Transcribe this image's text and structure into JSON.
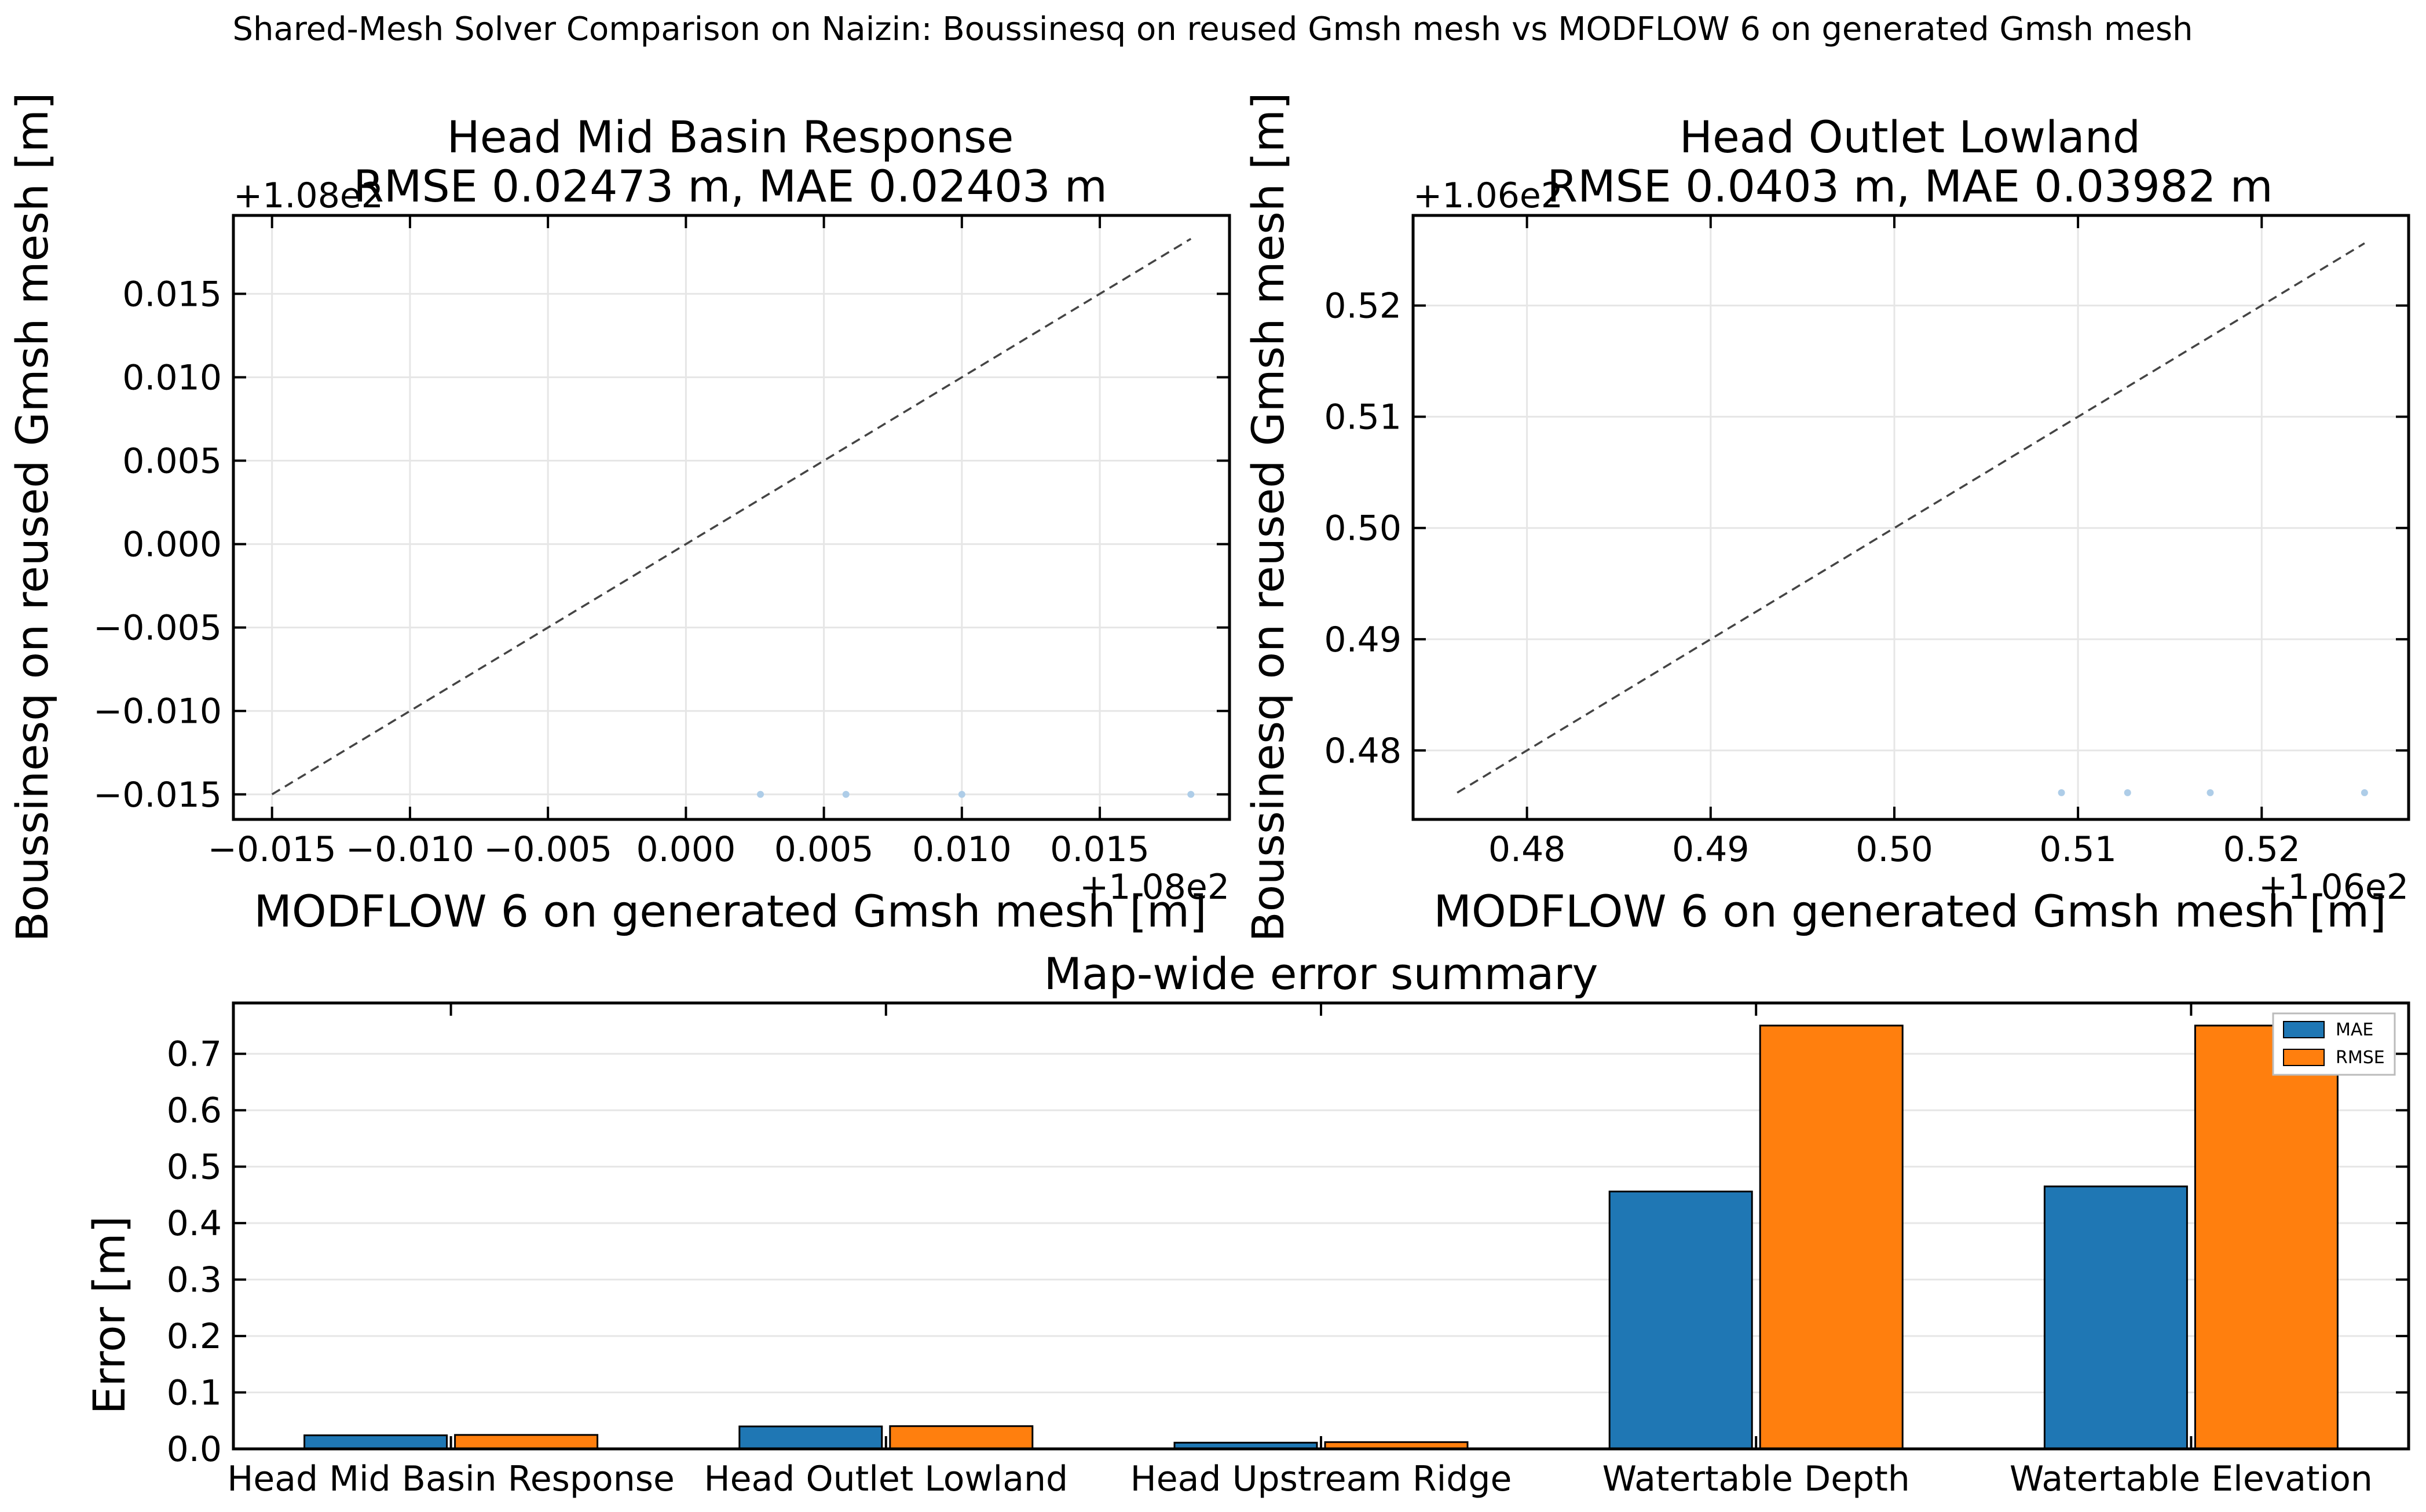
{
  "figure": {
    "suptitle": "Shared-Mesh Solver Comparison on Naizin: Boussinesq on reused Gmsh mesh vs MODFLOW 6 on generated Gmsh mesh"
  },
  "chart_data": [
    {
      "type": "scatter",
      "title": "Head Mid Basin Response",
      "subtitle": "RMSE 0.02473 m, MAE 0.02403 m",
      "xlabel": "MODFLOW 6 on generated Gmsh mesh [m]",
      "ylabel": "Boussinesq on reused Gmsh mesh [m]",
      "x_offset_label": "+1.08e2",
      "y_offset_label": "+1.08e2",
      "xlim": [
        107.9836,
        108.0197
      ],
      "ylim": [
        107.9835,
        108.0197
      ],
      "xticks": [
        -0.015,
        -0.01,
        -0.005,
        0.0,
        0.005,
        0.01,
        0.015
      ],
      "xtick_labels": [
        "−0.015",
        "−0.010",
        "−0.005",
        "0.000",
        "0.005",
        "0.010",
        "0.015"
      ],
      "yticks": [
        -0.015,
        -0.01,
        -0.005,
        0.0,
        0.005,
        0.01,
        0.015
      ],
      "ytick_labels": [
        "−0.015",
        "−0.010",
        "−0.005",
        "0.000",
        "0.005",
        "0.010",
        "0.015"
      ],
      "tick_offset": 108,
      "reference_line": {
        "from": 107.985,
        "to": 108.0183
      },
      "grid": true,
      "point_color": "#aecde8",
      "points": [
        {
          "x": 108.0027,
          "y": 107.985
        },
        {
          "x": 108.0058,
          "y": 107.985
        },
        {
          "x": 108.01,
          "y": 107.985
        },
        {
          "x": 108.0183,
          "y": 107.985
        }
      ]
    },
    {
      "type": "scatter",
      "title": "Head Outlet Lowland",
      "subtitle": "RMSE 0.0403 m, MAE 0.03982 m",
      "xlabel": "MODFLOW 6 on generated Gmsh mesh [m]",
      "ylabel": "Boussinesq on reused Gmsh mesh [m]",
      "x_offset_label": "+1.06e2",
      "y_offset_label": "+1.06e2",
      "xlim": [
        106.4738,
        106.528
      ],
      "ylim": [
        106.4738,
        106.5281
      ],
      "xticks": [
        0.48,
        0.49,
        0.5,
        0.51,
        0.52
      ],
      "xtick_labels": [
        "0.48",
        "0.49",
        "0.50",
        "0.51",
        "0.52"
      ],
      "yticks": [
        0.48,
        0.49,
        0.5,
        0.51,
        0.52
      ],
      "ytick_labels": [
        "0.48",
        "0.49",
        "0.50",
        "0.51",
        "0.52"
      ],
      "tick_offset": 106,
      "reference_line": {
        "from": 106.4762,
        "to": 106.5256
      },
      "grid": true,
      "point_color": "#aecde8",
      "points": [
        {
          "x": 106.5091,
          "y": 106.4762
        },
        {
          "x": 106.5127,
          "y": 106.4762
        },
        {
          "x": 106.5172,
          "y": 106.4762
        },
        {
          "x": 106.5256,
          "y": 106.4762
        }
      ]
    },
    {
      "type": "bar",
      "title": "Map-wide error summary",
      "xlabel": "",
      "ylabel": "Error [m]",
      "ylim": [
        0,
        0.79
      ],
      "yticks": [
        0,
        0.1,
        0.2,
        0.3,
        0.4,
        0.5,
        0.6,
        0.7
      ],
      "ytick_labels": [
        "0.0",
        "0.1",
        "0.2",
        "0.3",
        "0.4",
        "0.5",
        "0.6",
        "0.7"
      ],
      "grid": true,
      "legend_position": "top-right",
      "categories": [
        "Head Mid Basin Response",
        "Head Outlet Lowland",
        "Head Upstream Ridge",
        "Watertable Depth",
        "Watertable Elevation"
      ],
      "series": [
        {
          "name": "MAE",
          "color": "#1f77b4",
          "values": [
            0.02403,
            0.03982,
            0.011,
            0.456,
            0.465
          ]
        },
        {
          "name": "RMSE",
          "color": "#ff7f0e",
          "values": [
            0.02473,
            0.0403,
            0.012,
            0.75,
            0.75
          ]
        }
      ]
    }
  ]
}
